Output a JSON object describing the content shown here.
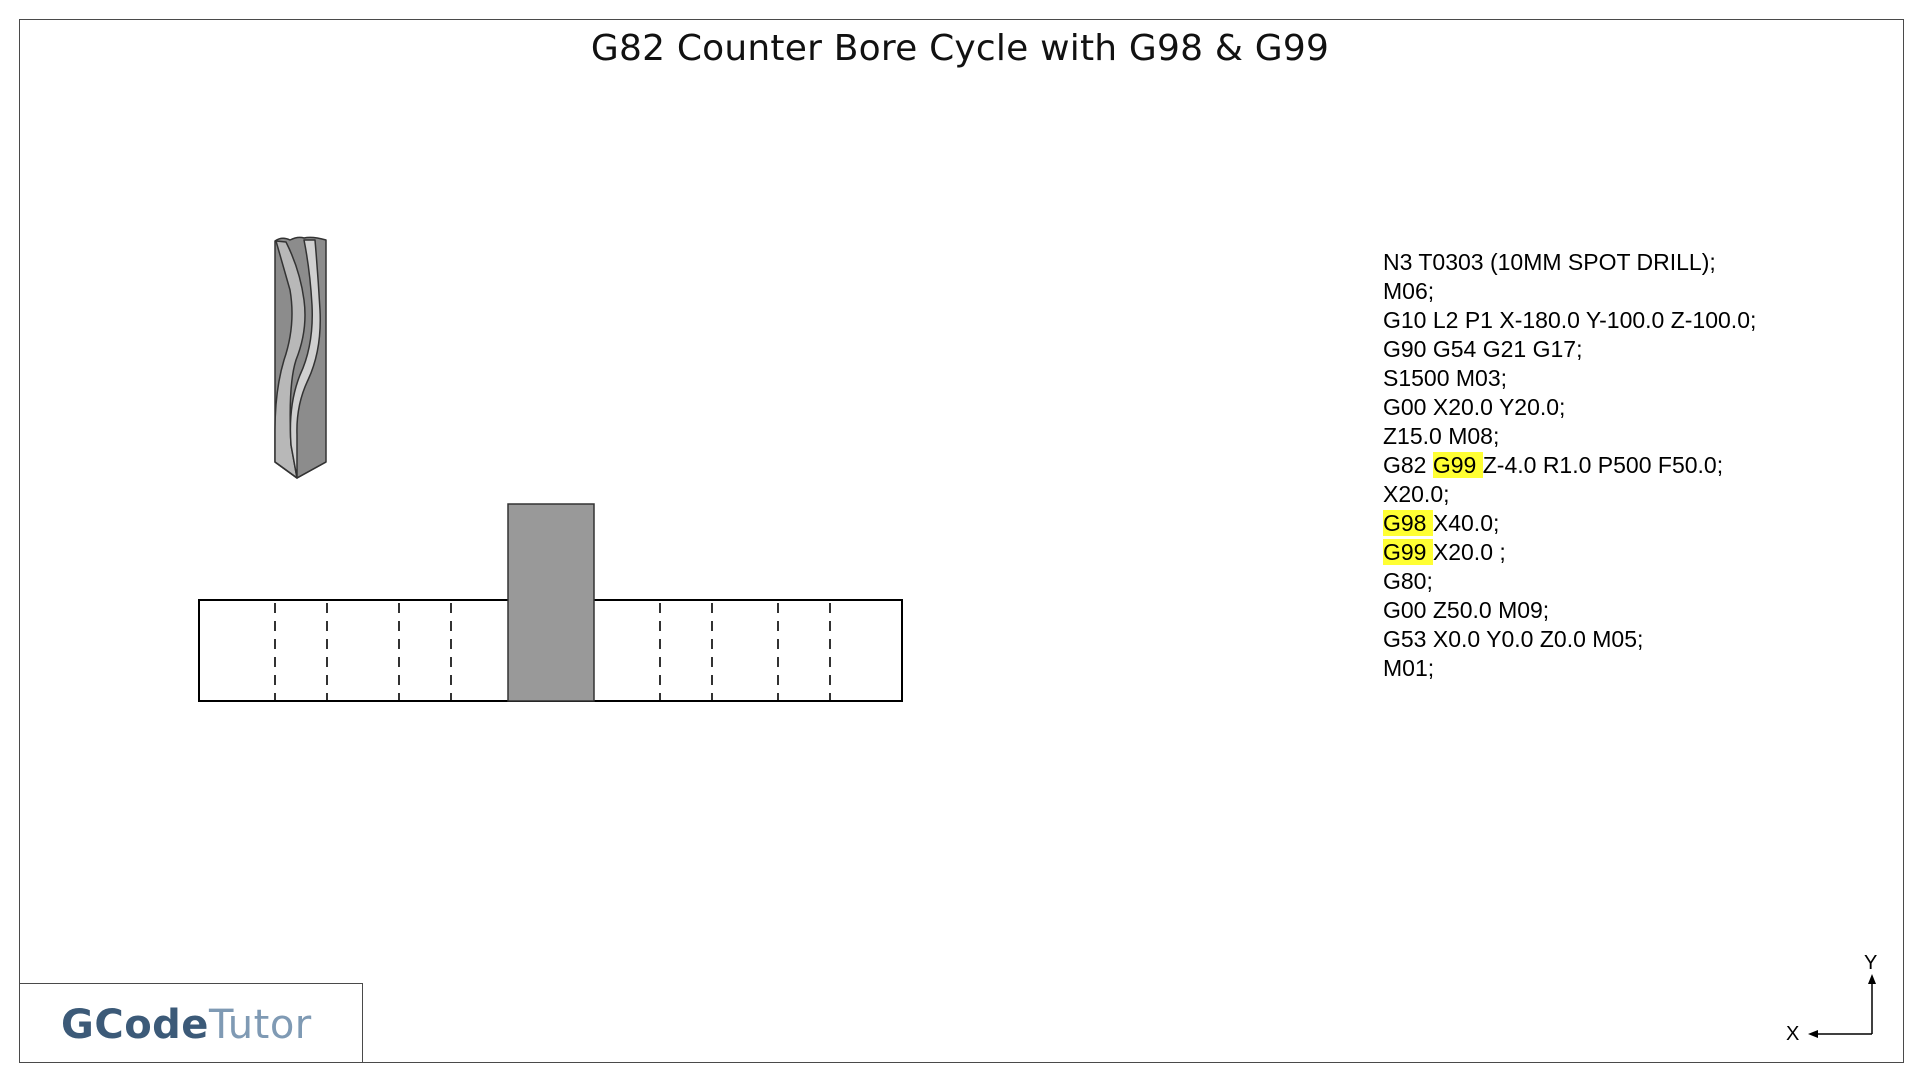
{
  "title": "G82 Counter Bore Cycle with G98 & G99",
  "program": [
    [
      {
        "t": "N3 T0303 (10MM SPOT DRILL);"
      }
    ],
    [
      {
        "t": "M06;"
      }
    ],
    [
      {
        "t": "G10 L2 P1 X-180.0 Y-100.0 Z-100.0;"
      }
    ],
    [
      {
        "t": "G90 G54 G21 G17;"
      }
    ],
    [
      {
        "t": "S1500 M03;"
      }
    ],
    [
      {
        "t": "G00 X20.0 Y20.0;"
      }
    ],
    [
      {
        "t": "Z15.0 M08;"
      }
    ],
    [
      {
        "t": "G82 "
      },
      {
        "t": "G99 ",
        "hl": true
      },
      {
        "t": "Z-4.0 R1.0 P500 F50.0;"
      }
    ],
    [
      {
        "t": "X20.0;"
      }
    ],
    [
      {
        "t": "G98 ",
        "hl": true
      },
      {
        "t": "X40.0;"
      }
    ],
    [
      {
        "t": "G99 ",
        "hl": true
      },
      {
        "t": "X20.0 ;"
      }
    ],
    [
      {
        "t": "G80;"
      }
    ],
    [
      {
        "t": "G00 Z50.0 M09;"
      }
    ],
    [
      {
        "t": "G53 X0.0 Y0.0 Z0.0 M05;"
      }
    ],
    [
      {
        "t": "M01;"
      }
    ]
  ],
  "highlight_color": "#ffff33",
  "logo": {
    "part1": "GCode",
    "part2": "Tutor",
    "color1": "#3c5a78",
    "color2": "#7f9ab4"
  },
  "axes": {
    "x_label": "X",
    "y_label": "Y"
  },
  "part_fill": "#999999"
}
